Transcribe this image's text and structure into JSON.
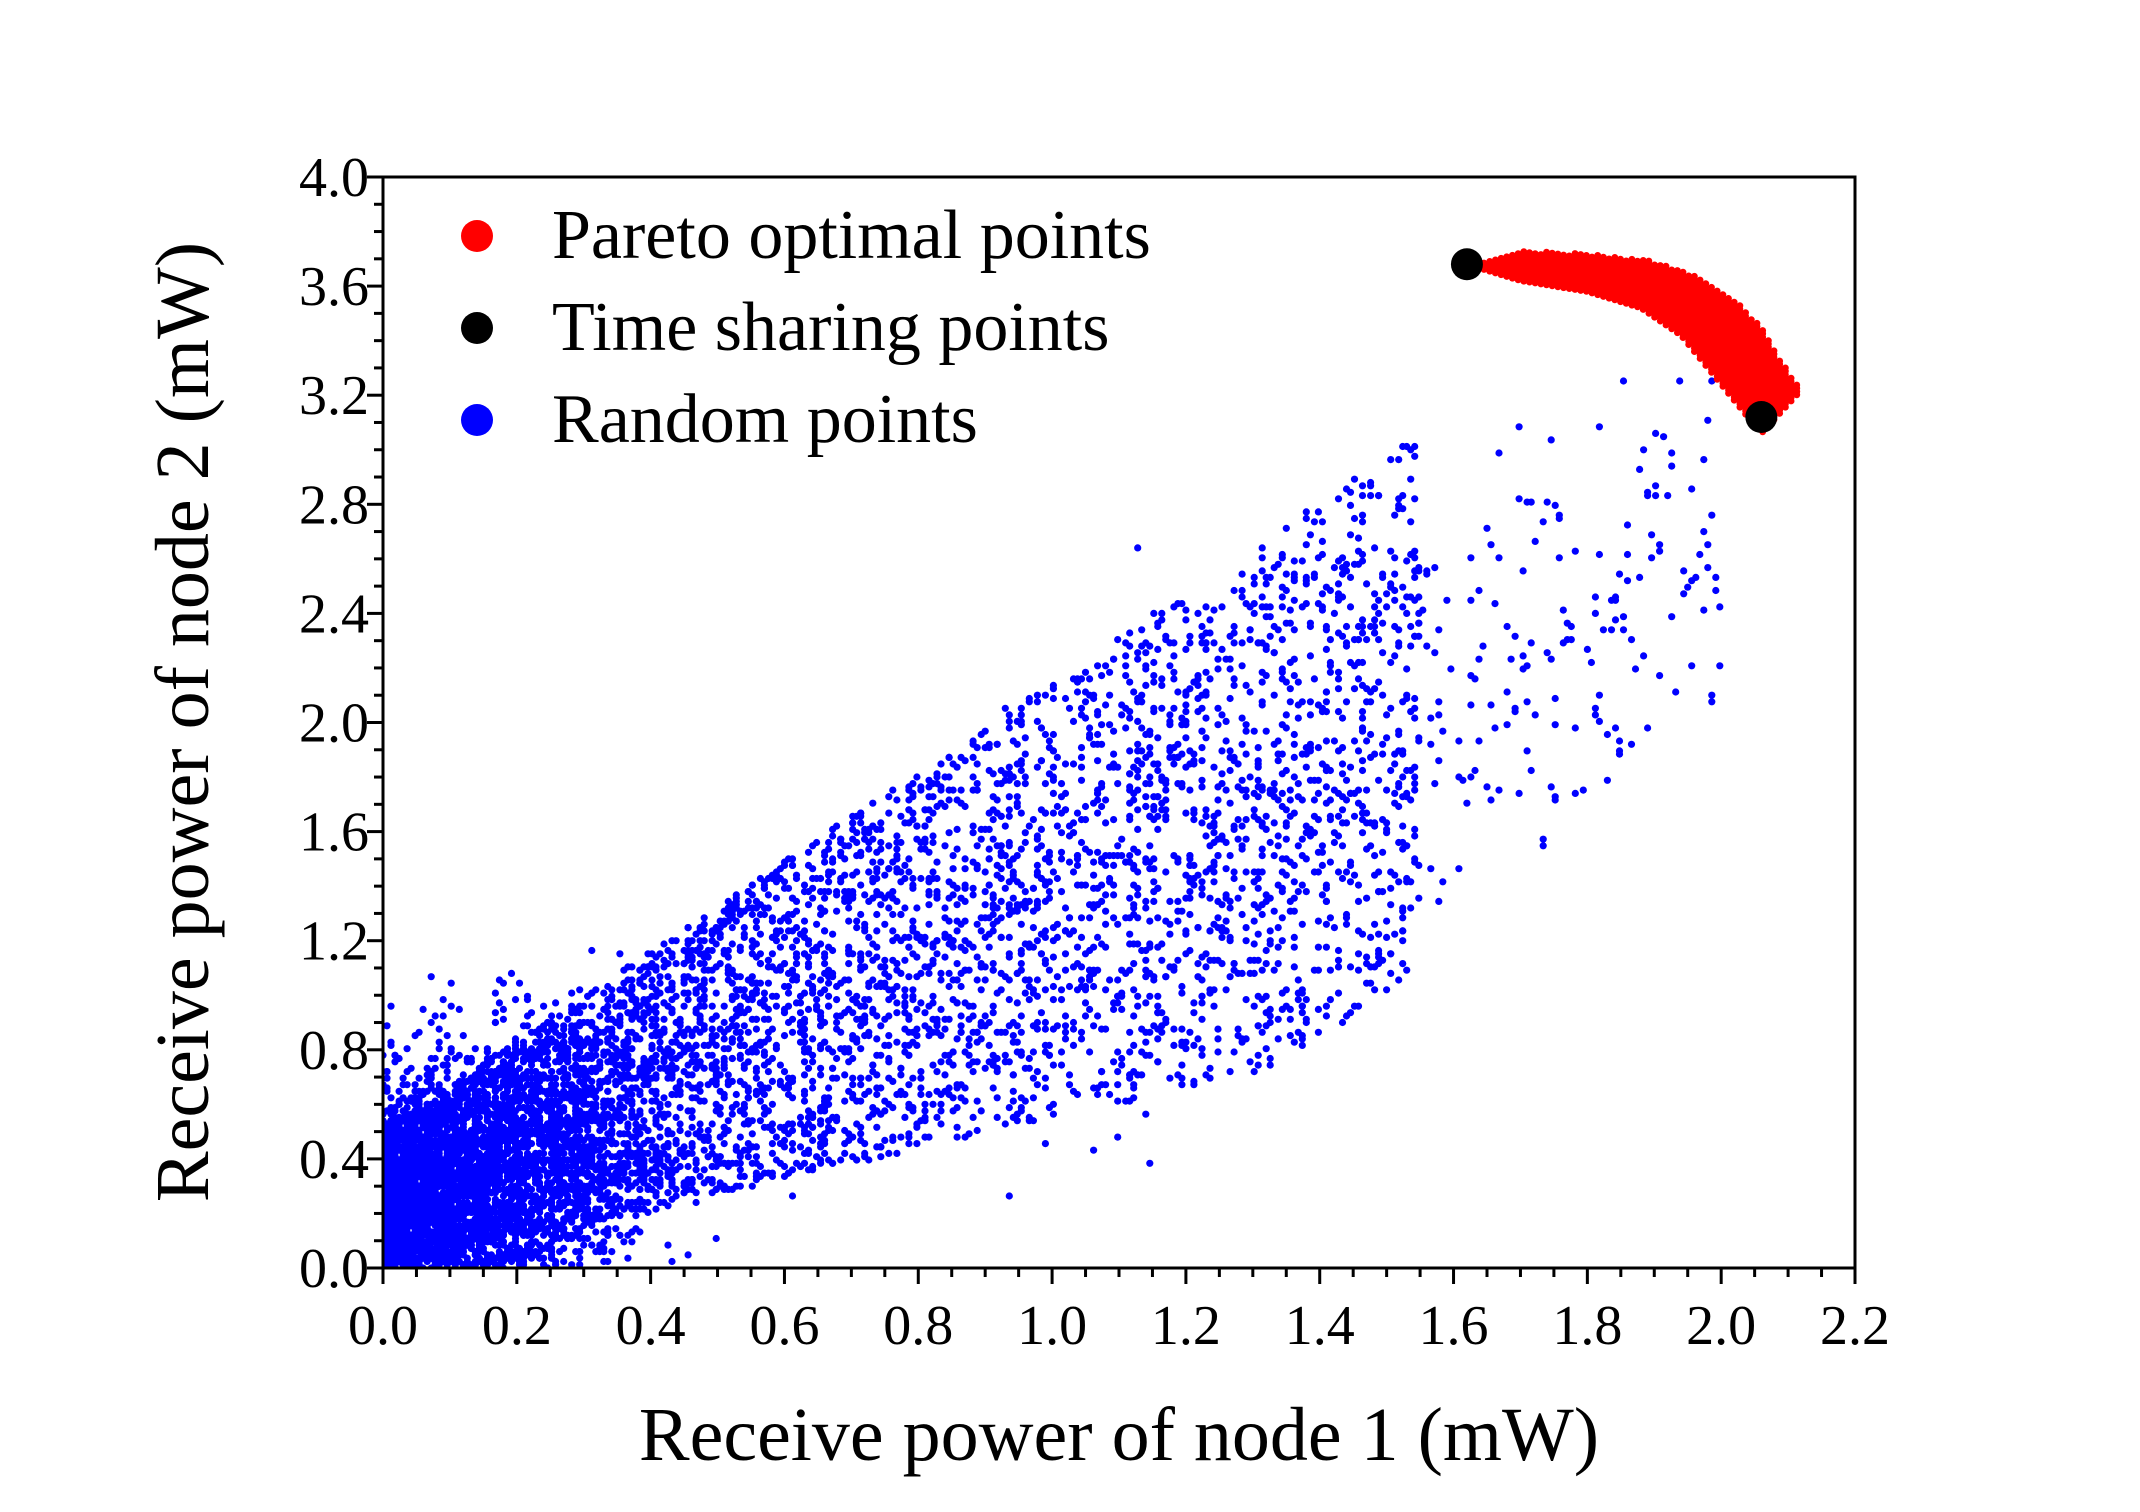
{
  "chart_data": {
    "type": "scatter",
    "title": "",
    "xlabel": "Receive power of node 1 (mW)",
    "ylabel": "Receive power of node 2 (mW)",
    "xlim": [
      0.0,
      2.2
    ],
    "ylim": [
      0.0,
      4.0
    ],
    "xticks": [
      0.0,
      0.2,
      0.4,
      0.6,
      0.8,
      1.0,
      1.2,
      1.4,
      1.6,
      1.8,
      2.0,
      2.2
    ],
    "xtick_labels": [
      "0.0",
      "0.2",
      "0.4",
      "0.6",
      "0.8",
      "1.0",
      "1.2",
      "1.4",
      "1.6",
      "1.8",
      "2.0",
      "2.2"
    ],
    "yticks": [
      0.0,
      0.4,
      0.8,
      1.2,
      1.6,
      2.0,
      2.4,
      2.8,
      3.2,
      3.6,
      4.0
    ],
    "ytick_labels": [
      "0.0",
      "0.4",
      "0.8",
      "1.2",
      "1.6",
      "2.0",
      "2.4",
      "2.8",
      "3.2",
      "3.6",
      "4.0"
    ],
    "grid": false,
    "legend_position": "top-left",
    "series": [
      {
        "name": "Pareto optimal points",
        "color": "#ff0000",
        "marker": "small-dot",
        "region": {
          "x_range": [
            1.62,
            2.12
          ],
          "upper_boundary": [
            [
              1.62,
              3.68
            ],
            [
              1.7,
              3.73
            ],
            [
              1.8,
              3.72
            ],
            [
              1.9,
              3.69
            ],
            [
              1.96,
              3.64
            ],
            [
              2.02,
              3.55
            ],
            [
              2.06,
              3.45
            ],
            [
              2.09,
              3.32
            ],
            [
              2.12,
              3.22
            ]
          ],
          "lower_boundary": [
            [
              1.62,
              3.68
            ],
            [
              1.7,
              3.62
            ],
            [
              1.8,
              3.58
            ],
            [
              1.88,
              3.52
            ],
            [
              1.94,
              3.42
            ],
            [
              1.98,
              3.3
            ],
            [
              2.02,
              3.18
            ],
            [
              2.06,
              3.06
            ],
            [
              2.12,
              3.22
            ]
          ]
        }
      },
      {
        "name": "Time sharing points",
        "color": "#000000",
        "marker": "large-dot",
        "points": [
          [
            1.62,
            3.68
          ],
          [
            2.06,
            3.12
          ]
        ]
      },
      {
        "name": "Random points",
        "color": "#0000ff",
        "marker": "small-dot",
        "distribution": {
          "x_range": [
            0.0,
            2.1
          ],
          "y_range": [
            0.0,
            3.3
          ],
          "dense_core": {
            "x": [
              0.0,
              0.35
            ],
            "y": [
              0.0,
              0.9
            ]
          },
          "trend": "positively correlated cloud spreading toward the upper right"
        }
      }
    ]
  }
}
